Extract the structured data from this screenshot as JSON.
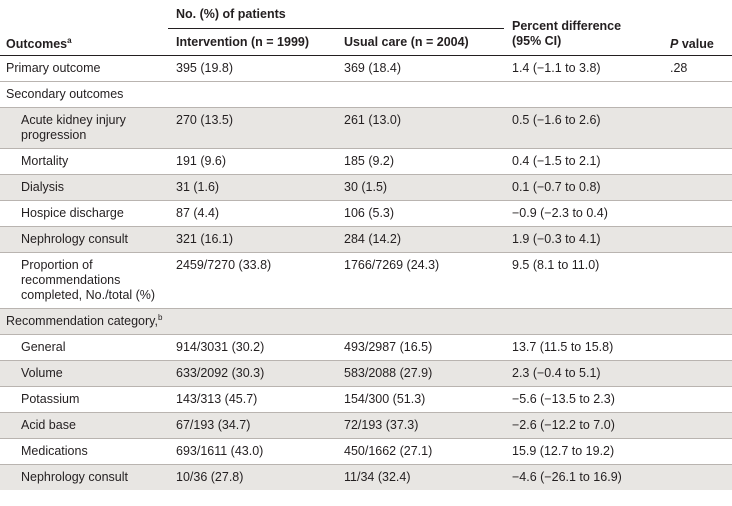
{
  "header": {
    "outcomes": "Outcomes",
    "outcomes_sup": "a",
    "group_label": "No. (%) of patients",
    "intervention": "Intervention (n = 1999)",
    "usual_care": "Usual care (n = 2004)",
    "pct_diff_line1": "Percent difference",
    "pct_diff_line2": "(95% CI)",
    "p_letter": "P",
    "p_rest": " value"
  },
  "rows": [
    {
      "label": "Primary outcome",
      "indent": false,
      "shade": false,
      "intervention": "395 (19.8)",
      "usual": "369 (18.4)",
      "diff": "1.4 (−1.1 to 3.8)",
      "p": ".28"
    },
    {
      "label": "Secondary outcomes",
      "indent": false,
      "shade": false,
      "intervention": "",
      "usual": "",
      "diff": "",
      "p": ""
    },
    {
      "label": "Acute kidney injury progression",
      "indent": true,
      "shade": true,
      "intervention": "270 (13.5)",
      "usual": "261 (13.0)",
      "diff": "0.5 (−1.6 to 2.6)",
      "p": ""
    },
    {
      "label": "Mortality",
      "indent": true,
      "shade": false,
      "intervention": "191 (9.6)",
      "usual": "185 (9.2)",
      "diff": "0.4 (−1.5 to 2.1)",
      "p": ""
    },
    {
      "label": "Dialysis",
      "indent": true,
      "shade": true,
      "intervention": "31 (1.6)",
      "usual": "30 (1.5)",
      "diff": "0.1 (−0.7 to 0.8)",
      "p": ""
    },
    {
      "label": "Hospice discharge",
      "indent": true,
      "shade": false,
      "intervention": "87 (4.4)",
      "usual": "106 (5.3)",
      "diff": "−0.9 (−2.3 to 0.4)",
      "p": ""
    },
    {
      "label": "Nephrology consult",
      "indent": true,
      "shade": true,
      "intervention": "321 (16.1)",
      "usual": "284 (14.2)",
      "diff": "1.9 (−0.3 to 4.1)",
      "p": ""
    },
    {
      "label": "Proportion of recommendations completed, No./total (%)",
      "indent": true,
      "shade": false,
      "intervention": "2459/7270 (33.8)",
      "usual": "1766/7269 (24.3)",
      "diff": "9.5 (8.1 to 11.0)",
      "p": ""
    },
    {
      "label": "Recommendation category,",
      "label_sup": "b",
      "indent": false,
      "shade": true,
      "intervention": "",
      "usual": "",
      "diff": "",
      "p": ""
    },
    {
      "label": "General",
      "indent": true,
      "shade": false,
      "intervention": "914/3031 (30.2)",
      "usual": "493/2987 (16.5)",
      "diff": "13.7 (11.5 to 15.8)",
      "p": ""
    },
    {
      "label": "Volume",
      "indent": true,
      "shade": true,
      "intervention": "633/2092 (30.3)",
      "usual": "583/2088 (27.9)",
      "diff": "2.3 (−0.4 to 5.1)",
      "p": ""
    },
    {
      "label": "Potassium",
      "indent": true,
      "shade": false,
      "intervention": "143/313 (45.7)",
      "usual": "154/300 (51.3)",
      "diff": "−5.6 (−13.5 to 2.3)",
      "p": ""
    },
    {
      "label": "Acid base",
      "indent": true,
      "shade": true,
      "intervention": "67/193 (34.7)",
      "usual": "72/193 (37.3)",
      "diff": "−2.6 (−12.2 to 7.0)",
      "p": ""
    },
    {
      "label": "Medications",
      "indent": true,
      "shade": false,
      "intervention": "693/1611 (43.0)",
      "usual": "450/1662 (27.1)",
      "diff": "15.9 (12.7 to 19.2)",
      "p": ""
    },
    {
      "label": "Nephrology consult",
      "indent": true,
      "shade": true,
      "intervention": "10/36 (27.8)",
      "usual": "11/34 (32.4)",
      "diff": "−4.6 (−26.1 to 16.9)",
      "p": ""
    }
  ]
}
